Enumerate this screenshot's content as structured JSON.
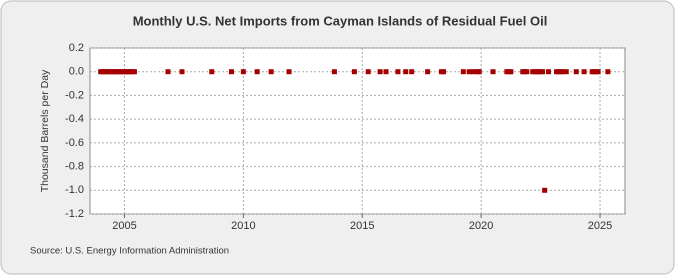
{
  "chart_data": {
    "type": "scatter",
    "title": "Monthly U.S. Net Imports from Cayman Islands of Residual Fuel Oil",
    "y_label": "Thousand Barrels per Day",
    "source": "Source: U.S. Energy Information Administration",
    "x": [
      2004.0,
      2004.08,
      2004.17,
      2004.25,
      2004.33,
      2004.42,
      2004.5,
      2004.58,
      2004.67,
      2004.75,
      2004.83,
      2004.92,
      2005.0,
      2005.08,
      2005.17,
      2005.25,
      2005.33,
      2005.42,
      2006.83,
      2007.42,
      2008.67,
      2009.5,
      2010.0,
      2010.58,
      2011.17,
      2011.92,
      2013.83,
      2014.67,
      2015.25,
      2015.75,
      2016.0,
      2016.5,
      2016.83,
      2017.08,
      2017.75,
      2018.33,
      2018.42,
      2019.25,
      2019.5,
      2019.67,
      2019.83,
      2019.92,
      2020.5,
      2021.08,
      2021.17,
      2021.25,
      2021.75,
      2021.83,
      2021.92,
      2022.17,
      2022.25,
      2022.33,
      2022.42,
      2022.5,
      2022.58,
      2022.67,
      2022.83,
      2023.17,
      2023.25,
      2023.33,
      2023.42,
      2023.58,
      2024.0,
      2024.33,
      2024.67,
      2024.75,
      2024.83,
      2024.92,
      2025.33
    ],
    "values": [
      0,
      0,
      0,
      0,
      0,
      0,
      0,
      0,
      0,
      0,
      0,
      0,
      0,
      0,
      0,
      0,
      0,
      0,
      0,
      0,
      0,
      0,
      0,
      0,
      0,
      0,
      0,
      0,
      0,
      0,
      0,
      0,
      0,
      0,
      0,
      0,
      0,
      0,
      0,
      0,
      0,
      0,
      0,
      0,
      0,
      0,
      0,
      0,
      0,
      0,
      0,
      0,
      0,
      0,
      0,
      -1,
      0,
      0,
      0,
      0,
      0,
      0,
      0,
      0,
      0,
      0,
      0,
      0,
      0
    ],
    "color": "#a50000",
    "xlim": [
      2003.55,
      2026.05
    ],
    "xticks": [
      2005,
      2010,
      2015,
      2020,
      2025
    ],
    "ylim": [
      -1.2,
      0.2
    ],
    "yticks": [
      0.2,
      {
        "value": 0,
        "label": "0.0"
      },
      -0.2,
      -0.4,
      -0.6,
      -0.8,
      {
        "value": -1,
        "label": "-1.0"
      },
      -1.2
    ],
    "grid": true
  }
}
